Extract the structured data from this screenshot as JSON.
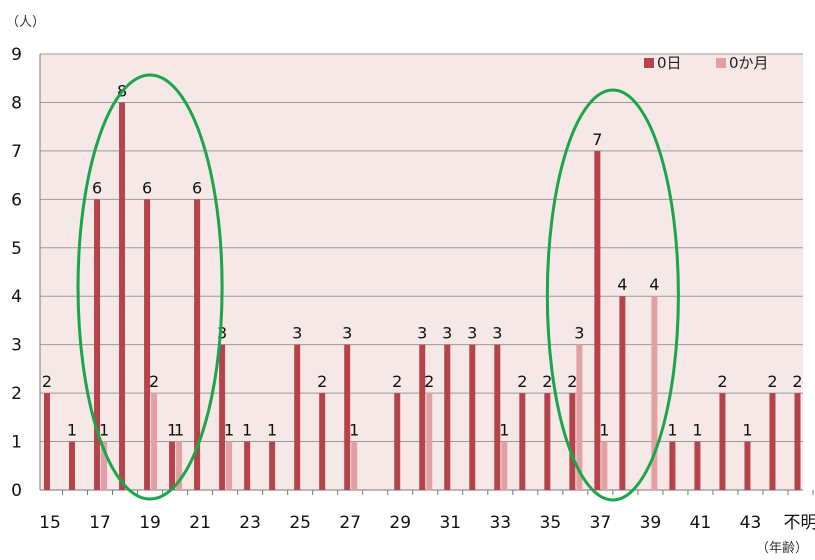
{
  "chart_data": {
    "type": "bar",
    "y_unit": "（人）",
    "x_unit": "（年齢）",
    "ylim": [
      0,
      9
    ],
    "yticks": [
      0,
      1,
      2,
      3,
      4,
      5,
      6,
      7,
      8,
      9
    ],
    "grid": true,
    "legend_position": "top-right",
    "categories": [
      "15",
      "16",
      "17",
      "18",
      "19",
      "20",
      "21",
      "22",
      "23",
      "24",
      "25",
      "26",
      "27",
      "28",
      "29",
      "30",
      "31",
      "32",
      "33",
      "34",
      "35",
      "36",
      "37",
      "38",
      "39",
      "40",
      "41",
      "42",
      "43",
      "44",
      "不明"
    ],
    "x_tick_labels": [
      "15",
      "",
      "17",
      "",
      "19",
      "",
      "21",
      "",
      "23",
      "",
      "25",
      "",
      "27",
      "",
      "29",
      "",
      "31",
      "",
      "33",
      "",
      "35",
      "",
      "37",
      "",
      "39",
      "",
      "41",
      "",
      "43",
      "",
      "不明"
    ],
    "series": [
      {
        "name": "0日",
        "color": "#b5434a",
        "values": [
          2,
          1,
          6,
          8,
          6,
          1,
          6,
          3,
          1,
          1,
          3,
          2,
          3,
          0,
          2,
          3,
          3,
          3,
          3,
          2,
          2,
          2,
          7,
          4,
          0,
          1,
          1,
          2,
          1,
          2,
          2
        ],
        "labels": [
          "2",
          "1",
          "6",
          "8",
          "6",
          "1",
          "6",
          "3",
          "1",
          "1",
          "3",
          "2",
          "3",
          "",
          "2",
          "3",
          "3",
          "3",
          "3",
          "2",
          "2",
          "2",
          "7",
          "4",
          "",
          "1",
          "1",
          "2",
          "1",
          "2",
          "2"
        ]
      },
      {
        "name": "0か月",
        "color": "#e3a0a2",
        "values": [
          0,
          0,
          1,
          0,
          2,
          1,
          0,
          1,
          0,
          0,
          0,
          0,
          1,
          0,
          0,
          2,
          0,
          0,
          1,
          0,
          0,
          3,
          1,
          0,
          4,
          0,
          0,
          0,
          0,
          0,
          0
        ],
        "labels": [
          "",
          "",
          "1",
          "",
          "2",
          "1",
          "",
          "1",
          "",
          "",
          "",
          "",
          "1",
          "",
          "",
          "2",
          "",
          "",
          "1",
          "",
          "",
          "3",
          "1",
          "",
          "4",
          "",
          "",
          "",
          "",
          "",
          ""
        ]
      }
    ],
    "annotations": [
      "ellipse around ages 17-21",
      "ellipse around ages 36-39"
    ],
    "annotation_color": "#1aa64a"
  }
}
